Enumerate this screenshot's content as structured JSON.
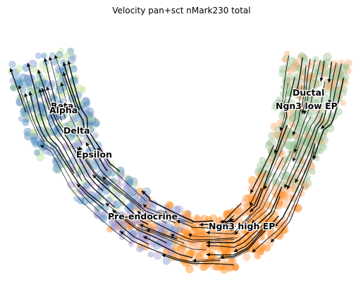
{
  "chart_data": {
    "type": "scatter",
    "subtype": "velocity streamplot over embedding",
    "title": "Velocity pan+sct nMark230 total",
    "xlabel": "",
    "ylabel": "",
    "axes_visible": false,
    "grid": false,
    "legend": "on data",
    "streamline_color": "#000000",
    "clusters": [
      {
        "name": "Ductal",
        "color": "#9cc59a"
      },
      {
        "name": "Ngn3 low EP",
        "color": "#a3c49a"
      },
      {
        "name": "Ngn3 high EP",
        "color": "#fdb07a"
      },
      {
        "name": "Pre-endocrine",
        "color": "#ff8c1a"
      },
      {
        "name": "Beta",
        "color": "#c0df9f"
      },
      {
        "name": "Alpha",
        "color": "#4f8fbf"
      },
      {
        "name": "Delta",
        "color": "#7f9ccf"
      },
      {
        "name": "Epsilon",
        "color": "#b39fd0"
      }
    ]
  }
}
